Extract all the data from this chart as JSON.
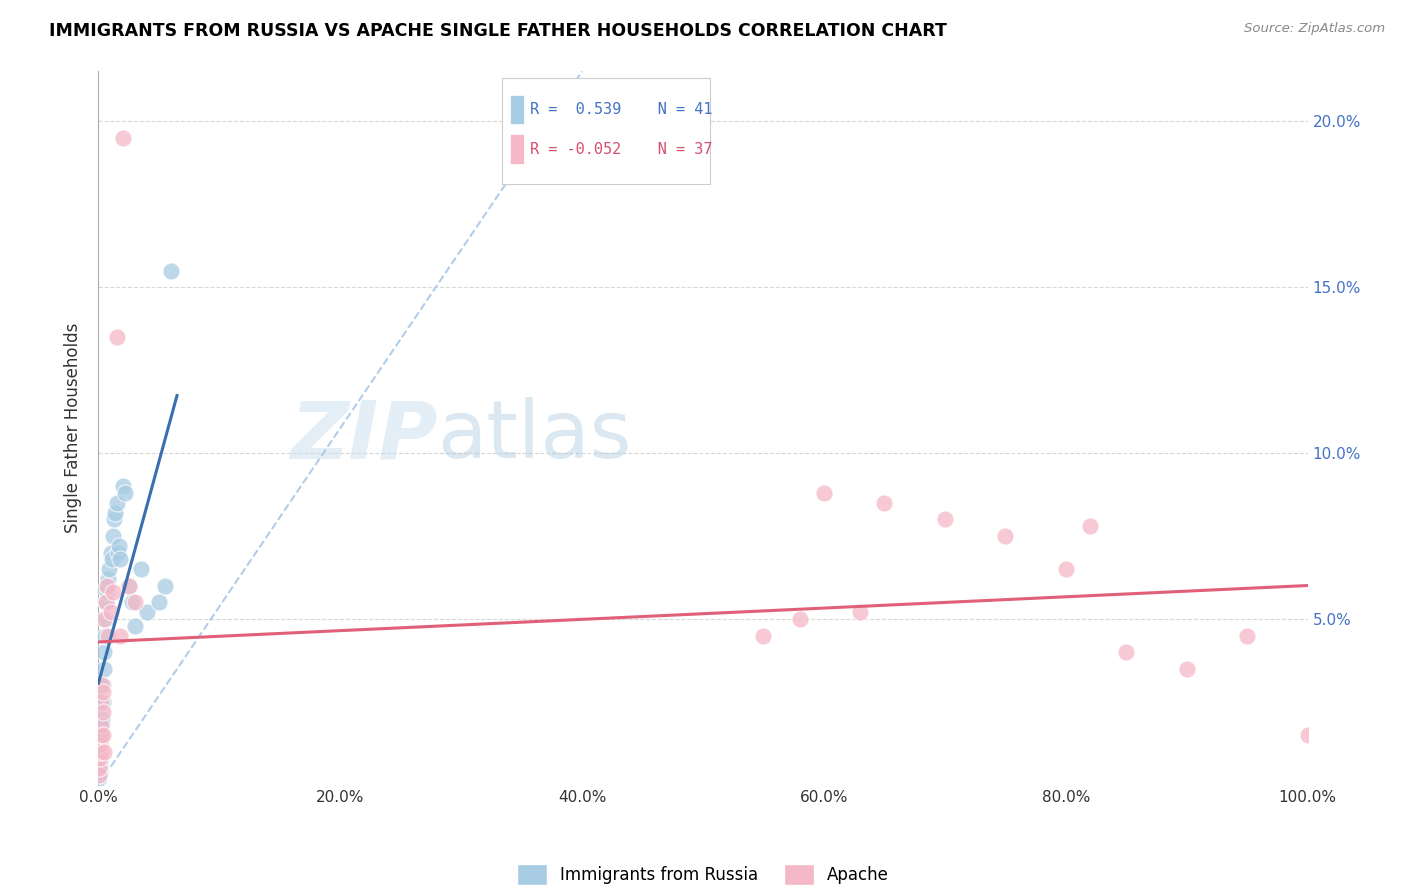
{
  "title": "IMMIGRANTS FROM RUSSIA VS APACHE SINGLE FATHER HOUSEHOLDS CORRELATION CHART",
  "source": "Source: ZipAtlas.com",
  "ylabel": "Single Father Households",
  "legend_labels": [
    "Immigrants from Russia",
    "Apache"
  ],
  "r_blue": 0.539,
  "n_blue": 41,
  "r_pink": -0.052,
  "n_pink": 37,
  "blue_fill": "#a8cce4",
  "pink_fill": "#f5b8c8",
  "blue_line": "#3a6faf",
  "pink_line": "#e0607a",
  "dash_color": "#aac8e8",
  "legend_border": "#cccccc",
  "legend_text_blue": "#4472c4",
  "legend_text_pink": "#d45070",
  "right_axis_color": "#4472c4",
  "watermark_zip_color": "#c8dff0",
  "watermark_atlas_color": "#b0cce0",
  "grid_color": "#d8d8d8",
  "xlim": [
    0.0,
    100.0
  ],
  "ylim": [
    0.0,
    21.5
  ],
  "blue_x": [
    0.05,
    0.08,
    0.1,
    0.12,
    0.15,
    0.18,
    0.2,
    0.22,
    0.25,
    0.28,
    0.3,
    0.35,
    0.4,
    0.45,
    0.5,
    0.55,
    0.6,
    0.65,
    0.7,
    0.75,
    0.8,
    0.9,
    1.0,
    1.1,
    1.2,
    1.3,
    1.4,
    1.5,
    1.6,
    1.7,
    1.8,
    2.0,
    2.2,
    2.5,
    2.8,
    3.0,
    3.5,
    4.0,
    5.0,
    5.5,
    6.0
  ],
  "blue_y": [
    0.2,
    0.3,
    0.4,
    0.5,
    0.6,
    0.8,
    1.0,
    1.2,
    1.5,
    1.8,
    2.0,
    2.5,
    3.0,
    3.5,
    4.0,
    4.5,
    5.0,
    5.5,
    5.8,
    6.0,
    6.2,
    6.5,
    7.0,
    6.8,
    7.5,
    8.0,
    8.2,
    8.5,
    7.0,
    7.2,
    6.8,
    9.0,
    8.8,
    6.0,
    5.5,
    4.8,
    6.5,
    5.2,
    5.5,
    6.0,
    15.5
  ],
  "pink_x": [
    0.05,
    0.08,
    0.1,
    0.12,
    0.15,
    0.18,
    0.2,
    0.25,
    0.3,
    0.35,
    0.4,
    0.5,
    0.6,
    0.7,
    0.8,
    1.0,
    1.2,
    1.5,
    2.0,
    2.5,
    3.0,
    1.8,
    0.4,
    0.5,
    60.0,
    65.0,
    70.0,
    75.0,
    80.0,
    82.0,
    85.0,
    90.0,
    95.0,
    100.0,
    55.0,
    58.0,
    63.0
  ],
  "pink_y": [
    0.3,
    0.5,
    0.8,
    1.0,
    1.2,
    1.5,
    1.8,
    2.5,
    3.0,
    2.2,
    1.5,
    5.0,
    5.5,
    6.0,
    4.5,
    5.2,
    5.8,
    13.5,
    19.5,
    6.0,
    5.5,
    4.5,
    2.8,
    1.0,
    8.8,
    8.5,
    8.0,
    7.5,
    6.5,
    7.8,
    4.0,
    3.5,
    4.5,
    1.5,
    4.5,
    5.0,
    5.2
  ]
}
